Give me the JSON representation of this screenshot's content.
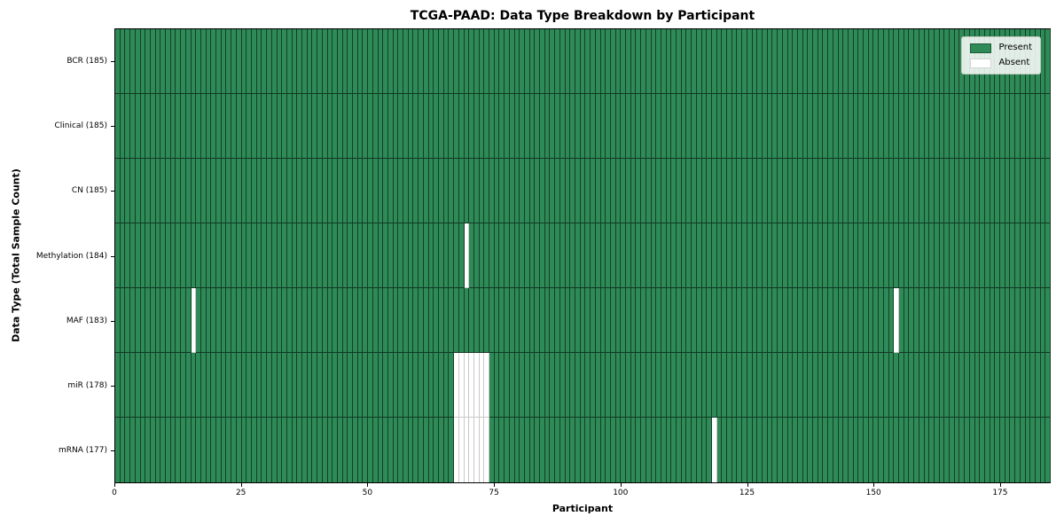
{
  "figure": {
    "background": "#ffffff"
  },
  "chart_data": {
    "type": "heatmap",
    "title": "TCGA-PAAD: Data Type Breakdown by Participant",
    "xlabel": "Participant",
    "ylabel": "Data Type (Total Sample Count)",
    "n_participants": 185,
    "xlim": [
      0,
      185
    ],
    "x_ticks": [
      0,
      25,
      50,
      75,
      100,
      125,
      150,
      175
    ],
    "grid": false,
    "legend_position": "upper right",
    "rows": [
      {
        "label": "BCR (185)",
        "data_type": "BCR",
        "present_count": 185,
        "absent_participants": []
      },
      {
        "label": "Clinical (185)",
        "data_type": "Clinical",
        "present_count": 185,
        "absent_participants": []
      },
      {
        "label": "CN (185)",
        "data_type": "CN",
        "present_count": 185,
        "absent_participants": []
      },
      {
        "label": "Methylation (184)",
        "data_type": "Methylation",
        "present_count": 184,
        "absent_participants": [
          69
        ]
      },
      {
        "label": "MAF (183)",
        "data_type": "MAF",
        "present_count": 183,
        "absent_participants": [
          15,
          154
        ]
      },
      {
        "label": "miR (178)",
        "data_type": "miR",
        "present_count": 178,
        "absent_participants": [
          67,
          68,
          69,
          70,
          71,
          72,
          73
        ]
      },
      {
        "label": "mRNA (177)",
        "data_type": "mRNA",
        "present_count": 177,
        "absent_participants": [
          67,
          68,
          69,
          70,
          71,
          72,
          73,
          118
        ]
      }
    ],
    "legend": [
      {
        "label": "Present",
        "color": "#2e8b57"
      },
      {
        "label": "Absent",
        "color": "#ffffff"
      }
    ],
    "colors": {
      "present": "#2e8b57",
      "absent": "#ffffff"
    }
  }
}
